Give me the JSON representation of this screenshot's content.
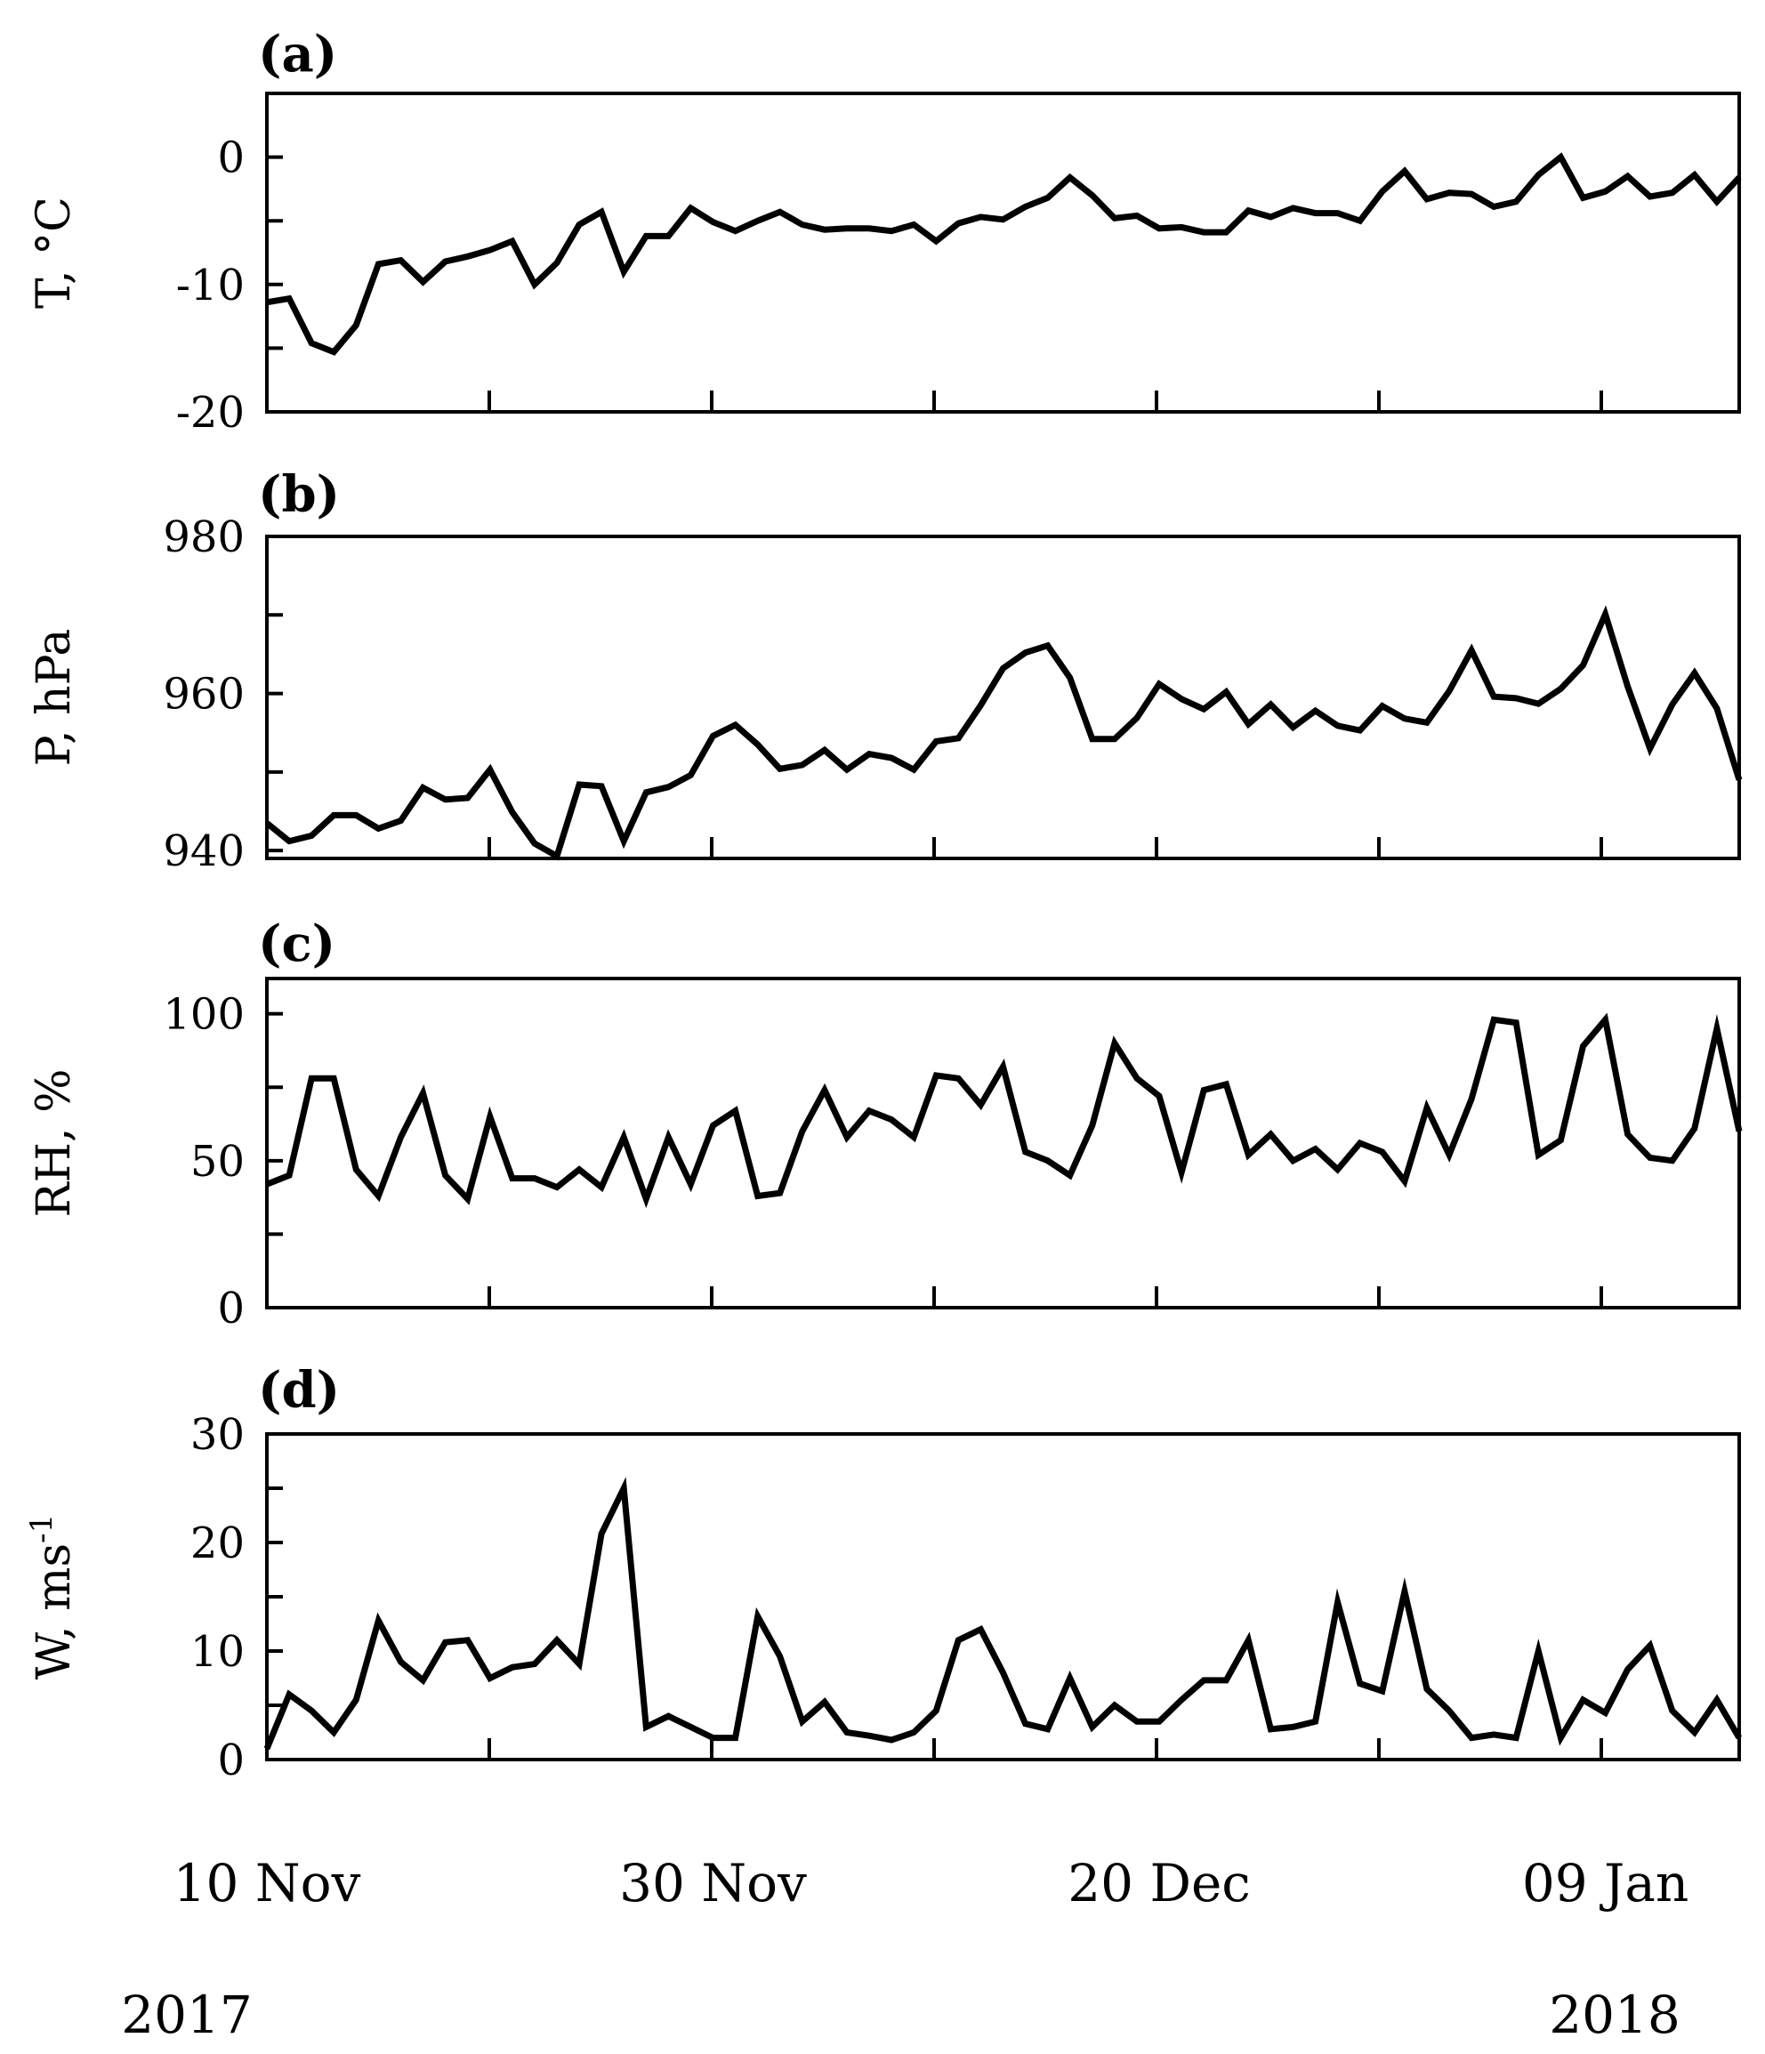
{
  "chart_data": [
    {
      "type": "line",
      "panel_label": "(a)",
      "ylabel": "T, °C",
      "ylim": [
        -20,
        5
      ],
      "yticks": [
        0,
        -10,
        -20
      ],
      "xlim": [
        0,
        66
      ],
      "x": [
        0,
        1,
        2,
        3,
        4,
        5,
        6,
        7,
        8,
        9,
        10,
        11,
        12,
        13,
        14,
        15,
        16,
        17,
        18,
        19,
        20,
        21,
        22,
        23,
        24,
        25,
        26,
        27,
        28,
        29,
        30,
        31,
        32,
        33,
        34,
        35,
        36,
        37,
        38,
        39,
        40,
        41,
        42,
        43,
        44,
        45,
        46,
        47,
        48,
        49,
        50,
        51,
        52,
        53,
        54,
        55,
        56,
        57,
        58,
        59,
        60,
        61,
        62,
        63,
        64,
        65,
        66
      ],
      "series": [
        {
          "values": [
            -11.4,
            -11.1,
            -14.6,
            -15.3,
            -13.2,
            -8.4,
            -8.1,
            -9.8,
            -8.2,
            -7.8,
            -7.3,
            -6.6,
            -10.0,
            -8.3,
            -5.3,
            -4.3,
            -9.0,
            -6.2,
            -6.2,
            -4.0,
            -5.1,
            -5.8,
            -5.0,
            -4.3,
            -5.3,
            -5.7,
            -5.6,
            -5.6,
            -5.8,
            -5.3,
            -6.6,
            -5.2,
            -4.7,
            -4.9,
            -3.9,
            -3.2,
            -1.6,
            -3.0,
            -4.8,
            -4.6,
            -5.6,
            -5.5,
            -5.9,
            -5.9,
            -4.2,
            -4.7,
            -4.0,
            -4.4,
            -4.4,
            -5.0,
            -2.7,
            -1.1,
            -3.3,
            -2.8,
            -2.9,
            -3.9,
            -3.5,
            -1.4,
            0.0,
            -3.2,
            -2.7,
            -1.5,
            -3.1,
            -2.8,
            -1.4,
            -3.5,
            -1.6
          ]
        }
      ]
    },
    {
      "type": "line",
      "panel_label": "(b)",
      "ylabel": "P, hPa",
      "ylim": [
        939,
        980
      ],
      "yticks": [
        980,
        960,
        940
      ],
      "xlim": [
        0,
        66
      ],
      "x": [
        0,
        1,
        2,
        3,
        4,
        5,
        6,
        7,
        8,
        9,
        10,
        11,
        12,
        13,
        14,
        15,
        16,
        17,
        18,
        19,
        20,
        21,
        22,
        23,
        24,
        25,
        26,
        27,
        28,
        29,
        30,
        31,
        32,
        33,
        34,
        35,
        36,
        37,
        38,
        39,
        40,
        41,
        42,
        43,
        44,
        45,
        46,
        47,
        48,
        49,
        50,
        51,
        52,
        53,
        54,
        55,
        56,
        57,
        58,
        59,
        60,
        61,
        62,
        63,
        64,
        65,
        66
      ],
      "series": [
        {
          "values": [
            943.5,
            941.2,
            941.9,
            944.5,
            944.5,
            942.8,
            943.8,
            948.0,
            946.5,
            946.7,
            950.3,
            944.9,
            940.9,
            939.3,
            948.4,
            948.2,
            941.2,
            947.4,
            948.1,
            949.6,
            954.6,
            956.0,
            953.5,
            950.4,
            950.9,
            952.8,
            950.3,
            952.3,
            951.8,
            950.3,
            953.9,
            954.3,
            958.5,
            963.2,
            965.2,
            966.1,
            962.0,
            954.2,
            954.2,
            956.9,
            961.2,
            959.3,
            958.0,
            960.2,
            956.1,
            958.6,
            955.7,
            957.8,
            955.9,
            955.3,
            958.4,
            956.8,
            956.3,
            960.3,
            965.5,
            959.6,
            959.4,
            958.7,
            960.6,
            963.6,
            970.1,
            960.9,
            953.0,
            958.6,
            962.6,
            958.1,
            949.0
          ]
        }
      ]
    },
    {
      "type": "line",
      "panel_label": "(c)",
      "ylabel": "RH, %",
      "ylim": [
        0,
        112
      ],
      "yticks": [
        100,
        50,
        0
      ],
      "xlim": [
        0,
        66
      ],
      "x": [
        0,
        1,
        2,
        3,
        4,
        5,
        6,
        7,
        8,
        9,
        10,
        11,
        12,
        13,
        14,
        15,
        16,
        17,
        18,
        19,
        20,
        21,
        22,
        23,
        24,
        25,
        26,
        27,
        28,
        29,
        30,
        31,
        32,
        33,
        34,
        35,
        36,
        37,
        38,
        39,
        40,
        41,
        42,
        43,
        44,
        45,
        46,
        47,
        48,
        49,
        50,
        51,
        52,
        53,
        54,
        55,
        56,
        57,
        58,
        59,
        60,
        61,
        62,
        63,
        64,
        65,
        66
      ],
      "series": [
        {
          "values": [
            42,
            45,
            78,
            78,
            47,
            38,
            58,
            73,
            45,
            37,
            65,
            44,
            44,
            41,
            47,
            41,
            58,
            37,
            58,
            42,
            62,
            67,
            38,
            39,
            60,
            74,
            58,
            67,
            64,
            58,
            79,
            78,
            69,
            82,
            53,
            50,
            45,
            62,
            90,
            78,
            72,
            46,
            74,
            76,
            52,
            59,
            50,
            54,
            47,
            56,
            53,
            43,
            68,
            52,
            71,
            98,
            97,
            52,
            57,
            89,
            98,
            59,
            51,
            50,
            61,
            95,
            60
          ]
        }
      ]
    },
    {
      "type": "line",
      "panel_label": "(d)",
      "ylabel": "W, ms-1",
      "ylim": [
        0,
        30
      ],
      "yticks": [
        30,
        20,
        10,
        0
      ],
      "xlim": [
        0,
        66
      ],
      "x": [
        0,
        1,
        2,
        3,
        4,
        5,
        6,
        7,
        8,
        9,
        10,
        11,
        12,
        13,
        14,
        15,
        16,
        17,
        18,
        19,
        20,
        21,
        22,
        23,
        24,
        25,
        26,
        27,
        28,
        29,
        30,
        31,
        32,
        33,
        34,
        35,
        36,
        37,
        38,
        39,
        40,
        41,
        42,
        43,
        44,
        45,
        46,
        47,
        48,
        49,
        50,
        51,
        52,
        53,
        54,
        55,
        56,
        57,
        58,
        59,
        60,
        61,
        62,
        63,
        64,
        65,
        66
      ],
      "series": [
        {
          "values": [
            1.0,
            6.0,
            4.5,
            2.5,
            5.5,
            12.8,
            9.0,
            7.3,
            10.8,
            11.0,
            7.5,
            8.5,
            8.8,
            11.0,
            8.8,
            20.8,
            25.0,
            3.0,
            4.0,
            3.0,
            2.0,
            2.0,
            13.2,
            9.5,
            3.5,
            5.3,
            2.5,
            2.2,
            1.8,
            2.5,
            4.5,
            11.0,
            12.0,
            8.0,
            3.3,
            2.8,
            7.5,
            3.0,
            5.0,
            3.5,
            3.5,
            5.5,
            7.3,
            7.3,
            11.0,
            2.8,
            3.0,
            3.5,
            14.5,
            7.0,
            6.3,
            15.5,
            6.5,
            4.5,
            2.0,
            2.3,
            2.0,
            10.0,
            2.0,
            5.5,
            4.3,
            8.3,
            10.5,
            4.5,
            2.5,
            5.5,
            2.0
          ]
        }
      ]
    }
  ],
  "x_axis": {
    "date_labels": [
      "10 Nov",
      "30 Nov",
      "20 Dec",
      "09 Jan"
    ],
    "date_label_x": [
      0,
      20,
      40,
      60
    ],
    "year_labels": [
      "2017",
      "2018"
    ]
  }
}
